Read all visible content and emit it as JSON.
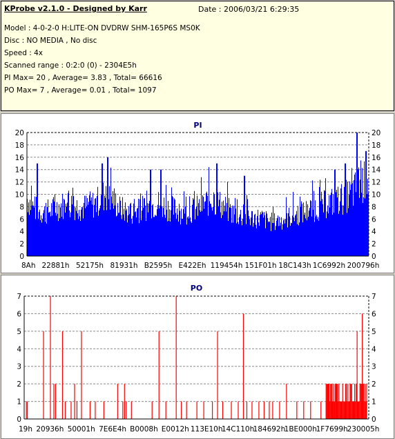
{
  "header": {
    "title": "KProbe v2.1.0 - Designed by Karr",
    "date": "Date : 2006/03/21 6:29:35",
    "lines": [
      "Model : 4-0-2-0 H:LITE-ON DVDRW SHM-165P6S MS0K",
      "Disc : NO MEDIA , No disc",
      "Speed : 4x",
      "Scanned range : 0:2:0 (0) - 2304E5h",
      "PI Max= 20 , Average= 3.83 , Total= 66616",
      "PO Max= 7 , Average= 0.01 , Total= 1097"
    ]
  },
  "chart_data": [
    {
      "type": "bar",
      "title": "PI",
      "color": "#0000ff",
      "ylim": [
        0,
        20
      ],
      "yticks": [
        0,
        2,
        4,
        6,
        8,
        10,
        12,
        14,
        16,
        18,
        20
      ],
      "xtick_labels": [
        "8Ah",
        "22881h",
        "52175h",
        "81931h",
        "B2595h",
        "E422Eh",
        "119454h",
        "151F01h",
        "18C143h",
        "1C6992h",
        "200796h"
      ],
      "grid": true,
      "envelope": [
        [
          0,
          12
        ],
        [
          0.02,
          10
        ],
        [
          0.05,
          9
        ],
        [
          0.08,
          10
        ],
        [
          0.12,
          11
        ],
        [
          0.16,
          10
        ],
        [
          0.2,
          11
        ],
        [
          0.23,
          13
        ],
        [
          0.25,
          12
        ],
        [
          0.27,
          10
        ],
        [
          0.3,
          9
        ],
        [
          0.34,
          10
        ],
        [
          0.38,
          11
        ],
        [
          0.42,
          10
        ],
        [
          0.46,
          9
        ],
        [
          0.5,
          10
        ],
        [
          0.54,
          12
        ],
        [
          0.56,
          11
        ],
        [
          0.6,
          9
        ],
        [
          0.64,
          8
        ],
        [
          0.68,
          8
        ],
        [
          0.72,
          7
        ],
        [
          0.76,
          8
        ],
        [
          0.8,
          9
        ],
        [
          0.84,
          10
        ],
        [
          0.88,
          11
        ],
        [
          0.92,
          12
        ],
        [
          0.95,
          13
        ],
        [
          0.97,
          15
        ],
        [
          1.0,
          16
        ]
      ],
      "peaks": [
        [
          0.03,
          15
        ],
        [
          0.22,
          15
        ],
        [
          0.235,
          16
        ],
        [
          0.36,
          14
        ],
        [
          0.39,
          14
        ],
        [
          0.555,
          15
        ],
        [
          0.635,
          13
        ],
        [
          0.9,
          14
        ],
        [
          0.93,
          15
        ],
        [
          0.965,
          20
        ],
        [
          0.99,
          17
        ]
      ]
    },
    {
      "type": "bar",
      "title": "PO",
      "color": "#ff0000",
      "ylim": [
        0,
        7
      ],
      "yticks": [
        0,
        1,
        2,
        3,
        4,
        5,
        6,
        7
      ],
      "xtick_labels": [
        "19h",
        "20936h",
        "50001h",
        "7E6E4h",
        "B0008h",
        "E0012h",
        "113E10h",
        "14C110h",
        "184692h",
        "1BE000h",
        "1F7699h",
        "230005h"
      ],
      "grid": true,
      "spikes": [
        [
          0.005,
          1
        ],
        [
          0.008,
          1
        ],
        [
          0.055,
          5
        ],
        [
          0.075,
          7
        ],
        [
          0.085,
          2
        ],
        [
          0.09,
          2
        ],
        [
          0.11,
          5
        ],
        [
          0.118,
          1
        ],
        [
          0.135,
          1
        ],
        [
          0.145,
          2
        ],
        [
          0.152,
          1
        ],
        [
          0.165,
          5
        ],
        [
          0.19,
          1
        ],
        [
          0.205,
          1
        ],
        [
          0.23,
          1
        ],
        [
          0.27,
          2
        ],
        [
          0.285,
          1
        ],
        [
          0.29,
          1
        ],
        [
          0.29,
          2
        ],
        [
          0.295,
          1
        ],
        [
          0.31,
          1
        ],
        [
          0.37,
          1
        ],
        [
          0.39,
          5
        ],
        [
          0.41,
          1
        ],
        [
          0.44,
          7
        ],
        [
          0.455,
          1
        ],
        [
          0.47,
          1
        ],
        [
          0.5,
          1
        ],
        [
          0.52,
          1
        ],
        [
          0.545,
          1
        ],
        [
          0.56,
          5
        ],
        [
          0.575,
          1
        ],
        [
          0.6,
          1
        ],
        [
          0.62,
          1
        ],
        [
          0.635,
          6
        ],
        [
          0.645,
          1
        ],
        [
          0.66,
          1
        ],
        [
          0.68,
          1
        ],
        [
          0.695,
          1
        ],
        [
          0.71,
          1
        ],
        [
          0.72,
          1
        ],
        [
          0.74,
          1
        ],
        [
          0.76,
          2
        ],
        [
          0.79,
          1
        ],
        [
          0.81,
          1
        ],
        [
          0.83,
          1
        ],
        [
          0.86,
          1
        ],
        [
          0.875,
          1
        ],
        [
          0.89,
          2
        ],
        [
          0.9,
          1
        ],
        [
          0.965,
          5
        ],
        [
          0.98,
          6
        ]
      ]
    }
  ]
}
